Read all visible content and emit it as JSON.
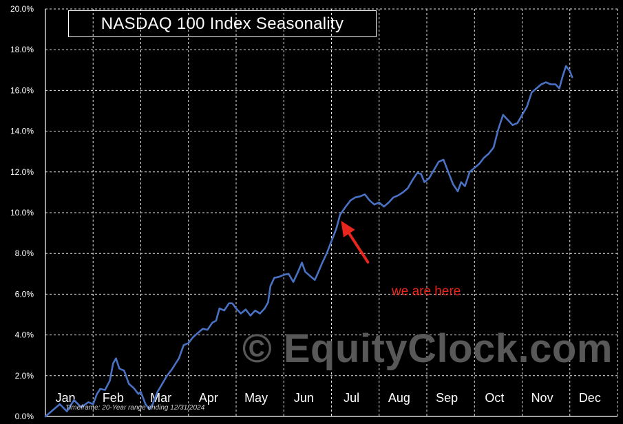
{
  "chart_data": {
    "type": "line",
    "title": "NASDAQ 100 Index Seasonality",
    "xlabel": "",
    "ylabel": "",
    "x_tick_labels": [
      "Jan",
      "Feb",
      "Mar",
      "Apr",
      "May",
      "Jun",
      "Jul",
      "Aug",
      "Sep",
      "Oct",
      "Nov",
      "Dec"
    ],
    "y_tick_labels": [
      "0.0%",
      "2.0%",
      "4.0%",
      "6.0%",
      "8.0%",
      "10.0%",
      "12.0%",
      "14.0%",
      "16.0%",
      "18.0%",
      "20.0%"
    ],
    "ylim": [
      0,
      20
    ],
    "y_unit": "%",
    "grid": true,
    "series": [
      {
        "color": "#4a72c4",
        "points": [
          [
            0.0,
            0.0
          ],
          [
            0.15,
            0.3
          ],
          [
            0.3,
            0.6
          ],
          [
            0.45,
            0.25
          ],
          [
            0.6,
            0.8
          ],
          [
            0.75,
            0.45
          ],
          [
            0.9,
            0.7
          ],
          [
            1.0,
            0.6
          ],
          [
            1.08,
            1.1
          ],
          [
            1.15,
            1.35
          ],
          [
            1.25,
            1.3
          ],
          [
            1.35,
            1.75
          ],
          [
            1.42,
            2.6
          ],
          [
            1.48,
            2.85
          ],
          [
            1.55,
            2.35
          ],
          [
            1.65,
            2.25
          ],
          [
            1.75,
            1.6
          ],
          [
            1.85,
            1.4
          ],
          [
            1.95,
            1.1
          ],
          [
            2.0,
            1.2
          ],
          [
            2.1,
            0.6
          ],
          [
            2.18,
            0.35
          ],
          [
            2.25,
            0.6
          ],
          [
            2.35,
            1.2
          ],
          [
            2.45,
            1.6
          ],
          [
            2.55,
            2.0
          ],
          [
            2.65,
            2.3
          ],
          [
            2.8,
            2.85
          ],
          [
            2.9,
            3.5
          ],
          [
            3.0,
            3.6
          ],
          [
            3.1,
            3.9
          ],
          [
            3.2,
            4.1
          ],
          [
            3.3,
            4.3
          ],
          [
            3.4,
            4.25
          ],
          [
            3.5,
            4.6
          ],
          [
            3.58,
            4.7
          ],
          [
            3.65,
            5.3
          ],
          [
            3.75,
            5.2
          ],
          [
            3.85,
            5.55
          ],
          [
            3.92,
            5.55
          ],
          [
            4.0,
            5.3
          ],
          [
            4.1,
            5.05
          ],
          [
            4.2,
            5.25
          ],
          [
            4.3,
            4.95
          ],
          [
            4.4,
            5.2
          ],
          [
            4.5,
            5.05
          ],
          [
            4.6,
            5.3
          ],
          [
            4.67,
            5.6
          ],
          [
            4.72,
            6.4
          ],
          [
            4.8,
            6.8
          ],
          [
            4.9,
            6.85
          ],
          [
            5.0,
            6.95
          ],
          [
            5.1,
            7.0
          ],
          [
            5.2,
            6.6
          ],
          [
            5.3,
            7.1
          ],
          [
            5.38,
            7.55
          ],
          [
            5.45,
            7.1
          ],
          [
            5.55,
            6.9
          ],
          [
            5.65,
            6.7
          ],
          [
            5.7,
            6.95
          ],
          [
            5.8,
            7.5
          ],
          [
            5.9,
            8.0
          ],
          [
            6.0,
            8.6
          ],
          [
            6.1,
            9.2
          ],
          [
            6.18,
            9.9
          ],
          [
            6.3,
            10.3
          ],
          [
            6.4,
            10.6
          ],
          [
            6.5,
            10.75
          ],
          [
            6.6,
            10.8
          ],
          [
            6.7,
            10.9
          ],
          [
            6.8,
            10.6
          ],
          [
            6.9,
            10.4
          ],
          [
            7.0,
            10.5
          ],
          [
            7.1,
            10.3
          ],
          [
            7.2,
            10.5
          ],
          [
            7.3,
            10.75
          ],
          [
            7.4,
            10.85
          ],
          [
            7.5,
            11.0
          ],
          [
            7.6,
            11.2
          ],
          [
            7.7,
            11.6
          ],
          [
            7.8,
            11.95
          ],
          [
            7.88,
            11.9
          ],
          [
            7.95,
            11.5
          ],
          [
            8.05,
            11.7
          ],
          [
            8.15,
            12.1
          ],
          [
            8.25,
            12.5
          ],
          [
            8.35,
            12.6
          ],
          [
            8.45,
            12.0
          ],
          [
            8.55,
            11.4
          ],
          [
            8.65,
            11.05
          ],
          [
            8.72,
            11.5
          ],
          [
            8.8,
            11.3
          ],
          [
            8.9,
            12.0
          ],
          [
            9.0,
            12.2
          ],
          [
            9.1,
            12.4
          ],
          [
            9.2,
            12.7
          ],
          [
            9.3,
            12.9
          ],
          [
            9.4,
            13.2
          ],
          [
            9.5,
            14.1
          ],
          [
            9.6,
            14.8
          ],
          [
            9.7,
            14.55
          ],
          [
            9.8,
            14.3
          ],
          [
            9.9,
            14.4
          ],
          [
            10.0,
            14.8
          ],
          [
            10.1,
            15.2
          ],
          [
            10.2,
            15.9
          ],
          [
            10.3,
            16.1
          ],
          [
            10.4,
            16.3
          ],
          [
            10.5,
            16.4
          ],
          [
            10.6,
            16.3
          ],
          [
            10.7,
            16.3
          ],
          [
            10.78,
            16.1
          ],
          [
            10.85,
            16.7
          ],
          [
            10.92,
            17.2
          ],
          [
            11.0,
            16.95
          ],
          [
            11.05,
            16.65
          ]
        ]
      }
    ],
    "annotation": {
      "text": "we are here",
      "color": "#e8261d",
      "target": [
        6.2,
        9.6
      ]
    },
    "note": "Timeframe:  20-Year range ending 12/31/2024",
    "watermark": "© EquityClock.com",
    "colors": {
      "background": "#000000",
      "line": "#4a72c4",
      "grid": "#ffffff",
      "annotation": "#e8261d"
    }
  }
}
